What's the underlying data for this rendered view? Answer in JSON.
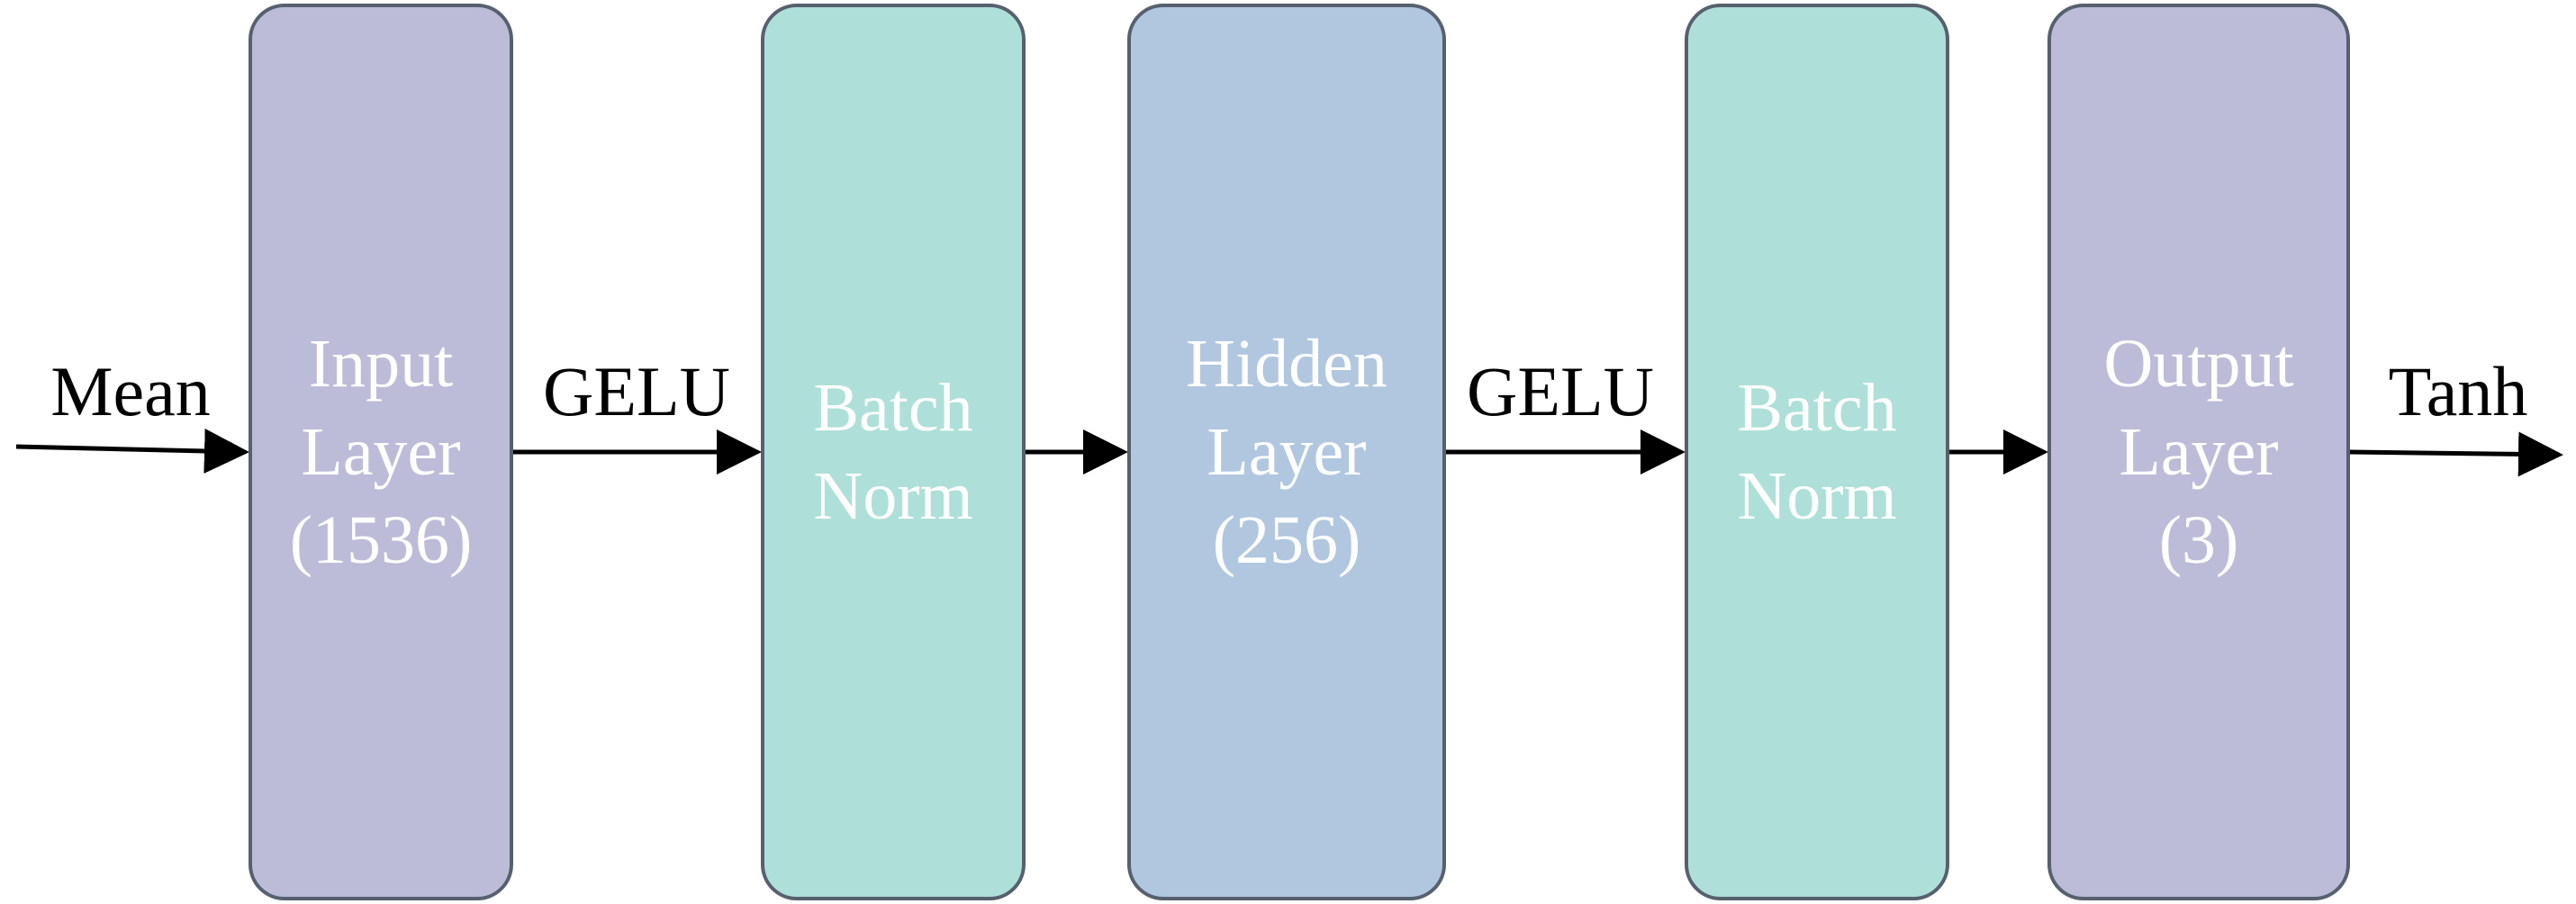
{
  "colors": {
    "purple_block": "#bcbcd9",
    "teal_block": "#aee0d9",
    "blue_block": "#b1c7e0",
    "block_border": "#56606e",
    "block_text": "#ffffff",
    "arrow": "#000000",
    "edge_text": "#000000"
  },
  "blocks": [
    {
      "id": "input",
      "lines": [
        "Input",
        "Layer",
        "(1536)"
      ],
      "color": "#bcbcd9"
    },
    {
      "id": "bn1",
      "lines": [
        "Batch",
        "Norm"
      ],
      "color": "#aee0d9"
    },
    {
      "id": "hidden",
      "lines": [
        "Hidden",
        "Layer",
        "(256)"
      ],
      "color": "#b1c7e0"
    },
    {
      "id": "bn2",
      "lines": [
        "Batch",
        "Norm"
      ],
      "color": "#aee0d9"
    },
    {
      "id": "output",
      "lines": [
        "Output",
        "Layer",
        "(3)"
      ],
      "color": "#bcbcd9"
    }
  ],
  "edge_labels": {
    "input": "Mean",
    "after_input": "GELU",
    "after_hidden": "GELU",
    "output": "Tanh"
  }
}
